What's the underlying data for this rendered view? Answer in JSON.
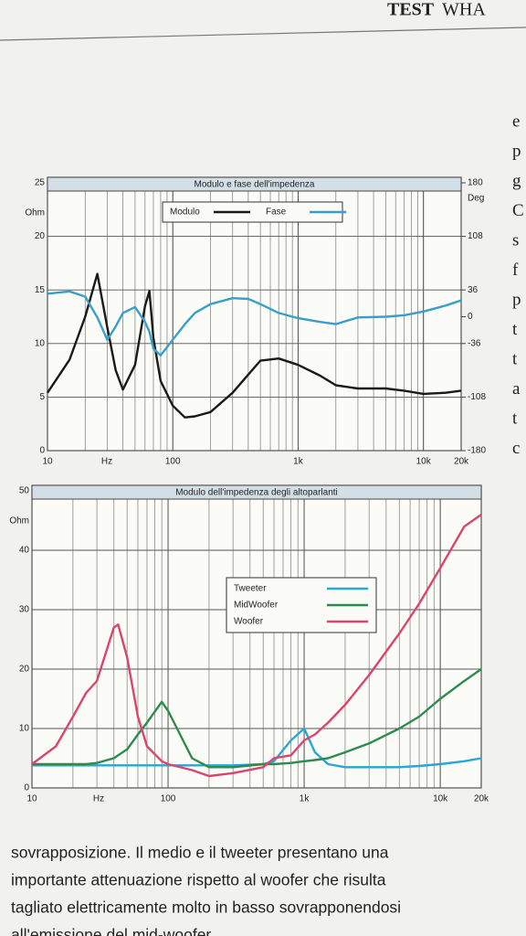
{
  "header": {
    "section": "TEST",
    "title": "WHA"
  },
  "side_text": [
    "e",
    "p",
    "g",
    "C",
    "s",
    "f",
    "p",
    "t",
    "t",
    "a",
    "t",
    "c"
  ],
  "body_text": [
    "sovrapposizione. Il medio e il tweeter presentano una",
    "importante attenuazione rispetto al woofer che risulta",
    "tagliato elettricamente molto in basso sovrapponendosi",
    "all'emissione del mid-woofer"
  ],
  "chart_data": [
    {
      "type": "line",
      "title": "Modulo e fase dell'impedenza",
      "log_x": true,
      "grid": true,
      "x_unit": "Hz",
      "y_unit": "Ohm",
      "y2_unit": "Deg",
      "xlim": [
        10,
        20000
      ],
      "xticks": [
        10,
        100,
        {
          "value": 1000,
          "label": "1k"
        },
        {
          "value": 10000,
          "label": "10k"
        },
        {
          "value": 20000,
          "label": "20k"
        }
      ],
      "ylim": [
        0,
        25
      ],
      "yticks": [
        0,
        5,
        10,
        15,
        20,
        25
      ],
      "y2lim": [
        -180,
        180
      ],
      "y2ticks": [
        -180,
        -108,
        -36,
        0,
        36,
        108,
        180
      ],
      "x": [
        10,
        15,
        20,
        25,
        30,
        35,
        40,
        50,
        60,
        65,
        70,
        80,
        100,
        125,
        150,
        200,
        300,
        400,
        500,
        700,
        1000,
        1500,
        2000,
        3000,
        5000,
        7000,
        10000,
        15000,
        20000
      ],
      "series": [
        {
          "name": "Modulo",
          "color": "#1a1a1a",
          "values": [
            5.4,
            8.5,
            12.5,
            16.5,
            11.5,
            7.5,
            5.7,
            8,
            13.5,
            14.9,
            10.5,
            6.5,
            4.2,
            3.1,
            3.2,
            3.6,
            5.4,
            7.1,
            8.4,
            8.6,
            8,
            7,
            6.1,
            5.8,
            5.8,
            5.6,
            5.3,
            5.4,
            5.6
          ]
        },
        {
          "name": "Fase",
          "color": "#3a9fc8",
          "axis": "y2",
          "values": [
            31,
            34,
            27,
            -1,
            -31,
            -13,
            5,
            13,
            -7,
            -20,
            -43,
            -52,
            -31,
            -10,
            5,
            17,
            25,
            24,
            17,
            5,
            -2,
            -7,
            -10,
            -1,
            0,
            2,
            7,
            15,
            22
          ]
        }
      ]
    },
    {
      "type": "line",
      "title": "Modulo dell'impedenza degli altoparlanti",
      "log_x": true,
      "grid": true,
      "x_unit": "Hz",
      "y_unit": "Ohm",
      "xlim": [
        10,
        20000
      ],
      "xticks": [
        10,
        100,
        {
          "value": 1000,
          "label": "1k"
        },
        {
          "value": 10000,
          "label": "10k"
        },
        {
          "value": 20000,
          "label": "20k"
        }
      ],
      "ylim": [
        0,
        50
      ],
      "yticks": [
        0,
        10,
        20,
        30,
        40,
        50
      ],
      "x": [
        10,
        15,
        20,
        25,
        30,
        40,
        43,
        50,
        60,
        70,
        90,
        100,
        150,
        200,
        300,
        500,
        600,
        800,
        1000,
        1200,
        1500,
        2000,
        3000,
        5000,
        7000,
        10000,
        15000,
        20000
      ],
      "series": [
        {
          "name": "Tweeter",
          "color": "#2aa6d6",
          "values": [
            3.8,
            3.8,
            3.8,
            3.8,
            3.8,
            3.8,
            3.8,
            3.8,
            3.8,
            3.8,
            3.8,
            3.8,
            3.8,
            3.8,
            3.8,
            4,
            4.5,
            8,
            10,
            6,
            4,
            3.5,
            3.5,
            3.5,
            3.7,
            4,
            4.5,
            5
          ]
        },
        {
          "name": "MidWoofer",
          "color": "#2e8a4e",
          "values": [
            4,
            4,
            4,
            4,
            4.2,
            5,
            5.5,
            6.5,
            9,
            11,
            14.5,
            13,
            5,
            3.5,
            3.5,
            4,
            4,
            4.2,
            4.5,
            4.7,
            5,
            6,
            7.5,
            10,
            12,
            15,
            18,
            20
          ]
        },
        {
          "name": "Woofer",
          "color": "#d9456e",
          "values": [
            4,
            7,
            12,
            16,
            18,
            27,
            27.5,
            22,
            12,
            7,
            4.5,
            4,
            3,
            2,
            2.5,
            3.5,
            5,
            5.5,
            8,
            9,
            11,
            14,
            19,
            26,
            31,
            37,
            44,
            46
          ]
        }
      ]
    }
  ]
}
